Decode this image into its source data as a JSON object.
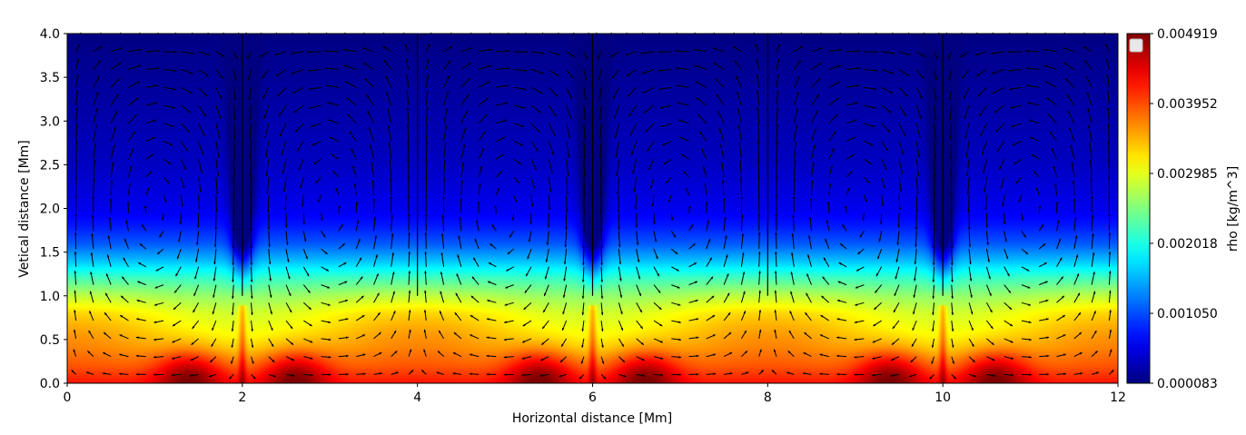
{
  "chart_data": {
    "type": "heatmap",
    "title": "",
    "xlabel": "Horizontal distance [Mm]",
    "ylabel": "Vetical distance [Mm]",
    "xlim": [
      0,
      12
    ],
    "ylim": [
      0,
      4
    ],
    "x_ticks": [
      "0",
      "2",
      "4",
      "6",
      "8",
      "10",
      "12"
    ],
    "y_ticks": [
      "0.0",
      "0.5",
      "1.0",
      "1.5",
      "2.0",
      "2.5",
      "3.0",
      "3.5",
      "4.0"
    ],
    "colorbar": {
      "label": "rho [kg/m^3]",
      "colormap": "jet",
      "min": 8.3e-05,
      "max": 0.004919,
      "ticks": [
        "0.000083",
        "0.001050",
        "0.002018",
        "0.002985",
        "0.003952",
        "0.004919"
      ]
    },
    "density_profile": {
      "heights_Mm": [
        0.0,
        0.2,
        0.4,
        0.6,
        0.8,
        1.0,
        1.2,
        1.4,
        1.6,
        1.8,
        2.0,
        2.5,
        3.0,
        3.5,
        4.0
      ],
      "rho": [
        0.0042,
        0.0038,
        0.0035,
        0.0033,
        0.0031,
        0.0027,
        0.0022,
        0.0016,
        0.0011,
        0.0008,
        0.0006,
        0.0004,
        0.0003,
        0.0002,
        0.0001
      ]
    },
    "downflow_lanes_Mm": [
      2,
      6,
      10
    ],
    "weak_lanes_Mm": [
      0.1,
      4,
      8,
      11.9
    ],
    "dense_blobs": [
      {
        "x": 1.4,
        "y": 0.1,
        "rho": 0.0047
      },
      {
        "x": 2.6,
        "y": 0.1,
        "rho": 0.0047
      },
      {
        "x": 5.4,
        "y": 0.1,
        "rho": 0.0047
      },
      {
        "x": 6.6,
        "y": 0.1,
        "rho": 0.0047
      },
      {
        "x": 9.4,
        "y": 0.1,
        "rho": 0.0047
      },
      {
        "x": 10.6,
        "y": 0.1,
        "rho": 0.0047
      }
    ],
    "overlay": "velocity quiver arrows (convection cells)",
    "grid": false,
    "legend": {
      "position": "top-left",
      "entries": []
    }
  }
}
